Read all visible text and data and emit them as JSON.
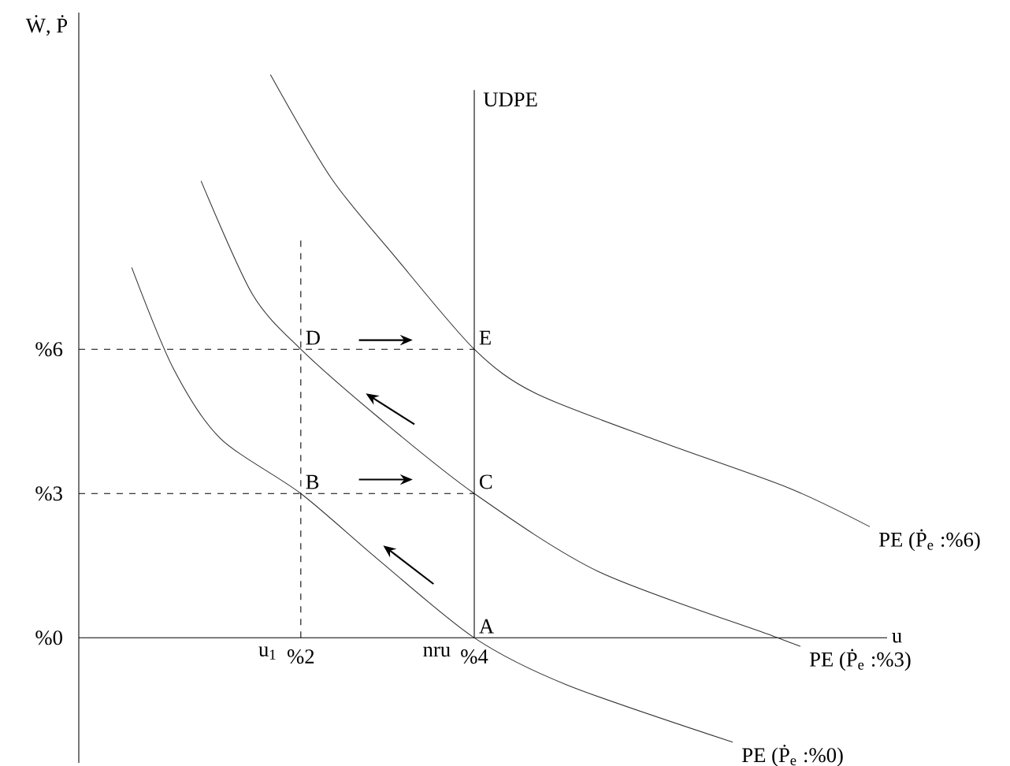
{
  "chart_data": {
    "type": "line",
    "xlabel": "u",
    "ylabel": "Ẇ, Ṗ",
    "xlim": [
      -0.56,
      8.76
    ],
    "ylim": [
      -2.6,
      13
    ],
    "xticks": [
      {
        "value": 2,
        "label": "%2"
      },
      {
        "value": 4,
        "label": "%4"
      }
    ],
    "yticks": [
      {
        "value": 0,
        "label": "%0"
      },
      {
        "value": 3,
        "label": "%3"
      },
      {
        "value": 6,
        "label": "%6"
      }
    ],
    "series": [
      {
        "name": "PE (Ṗ$_{e}$ :%0)",
        "color": "#333333",
        "x": [
          0.05,
          0.53,
          1.07,
          2,
          2.89,
          4,
          5.07,
          6.98
        ],
        "values": [
          7.7,
          5.6,
          4.15,
          3,
          1.63,
          0,
          -0.98,
          -2.17
        ]
      },
      {
        "name": "PE (Ṗ$_{e}$ :%3)",
        "color": "#333333",
        "x": [
          0.85,
          1.44,
          2,
          2.89,
          4,
          5.44,
          7.44,
          7.76
        ],
        "values": [
          9.5,
          7.15,
          6,
          4.59,
          3,
          1.37,
          0.04,
          -0.18
        ]
      },
      {
        "name": "PE (Ṗ$_{e}$ :%6)",
        "color": "#333333",
        "x": [
          1.65,
          2.35,
          3.07,
          4,
          4.71,
          6.16,
          7.62,
          8.56
        ],
        "values": [
          11.71,
          9.56,
          7.96,
          6,
          5.08,
          4.07,
          3.12,
          2.31
        ]
      },
      {
        "name": "UDPE",
        "color": "#000000",
        "x": [
          4,
          4
        ],
        "values": [
          0,
          11.39
        ]
      },
      {
        "color": "#000000",
        "line_style": "dashed",
        "x": [
          -0.56,
          4
        ],
        "values": [
          6,
          6
        ]
      },
      {
        "color": "#000000",
        "line_style": "dashed",
        "x": [
          -0.56,
          4
        ],
        "values": [
          3,
          3
        ]
      },
      {
        "color": "#000000",
        "line_style": "dashed",
        "x": [
          2,
          2
        ],
        "values": [
          0,
          8.3
        ]
      }
    ],
    "annotations": [
      "A",
      "B",
      "C",
      "D",
      "E",
      "u$_{1}$",
      "nru"
    ]
  }
}
